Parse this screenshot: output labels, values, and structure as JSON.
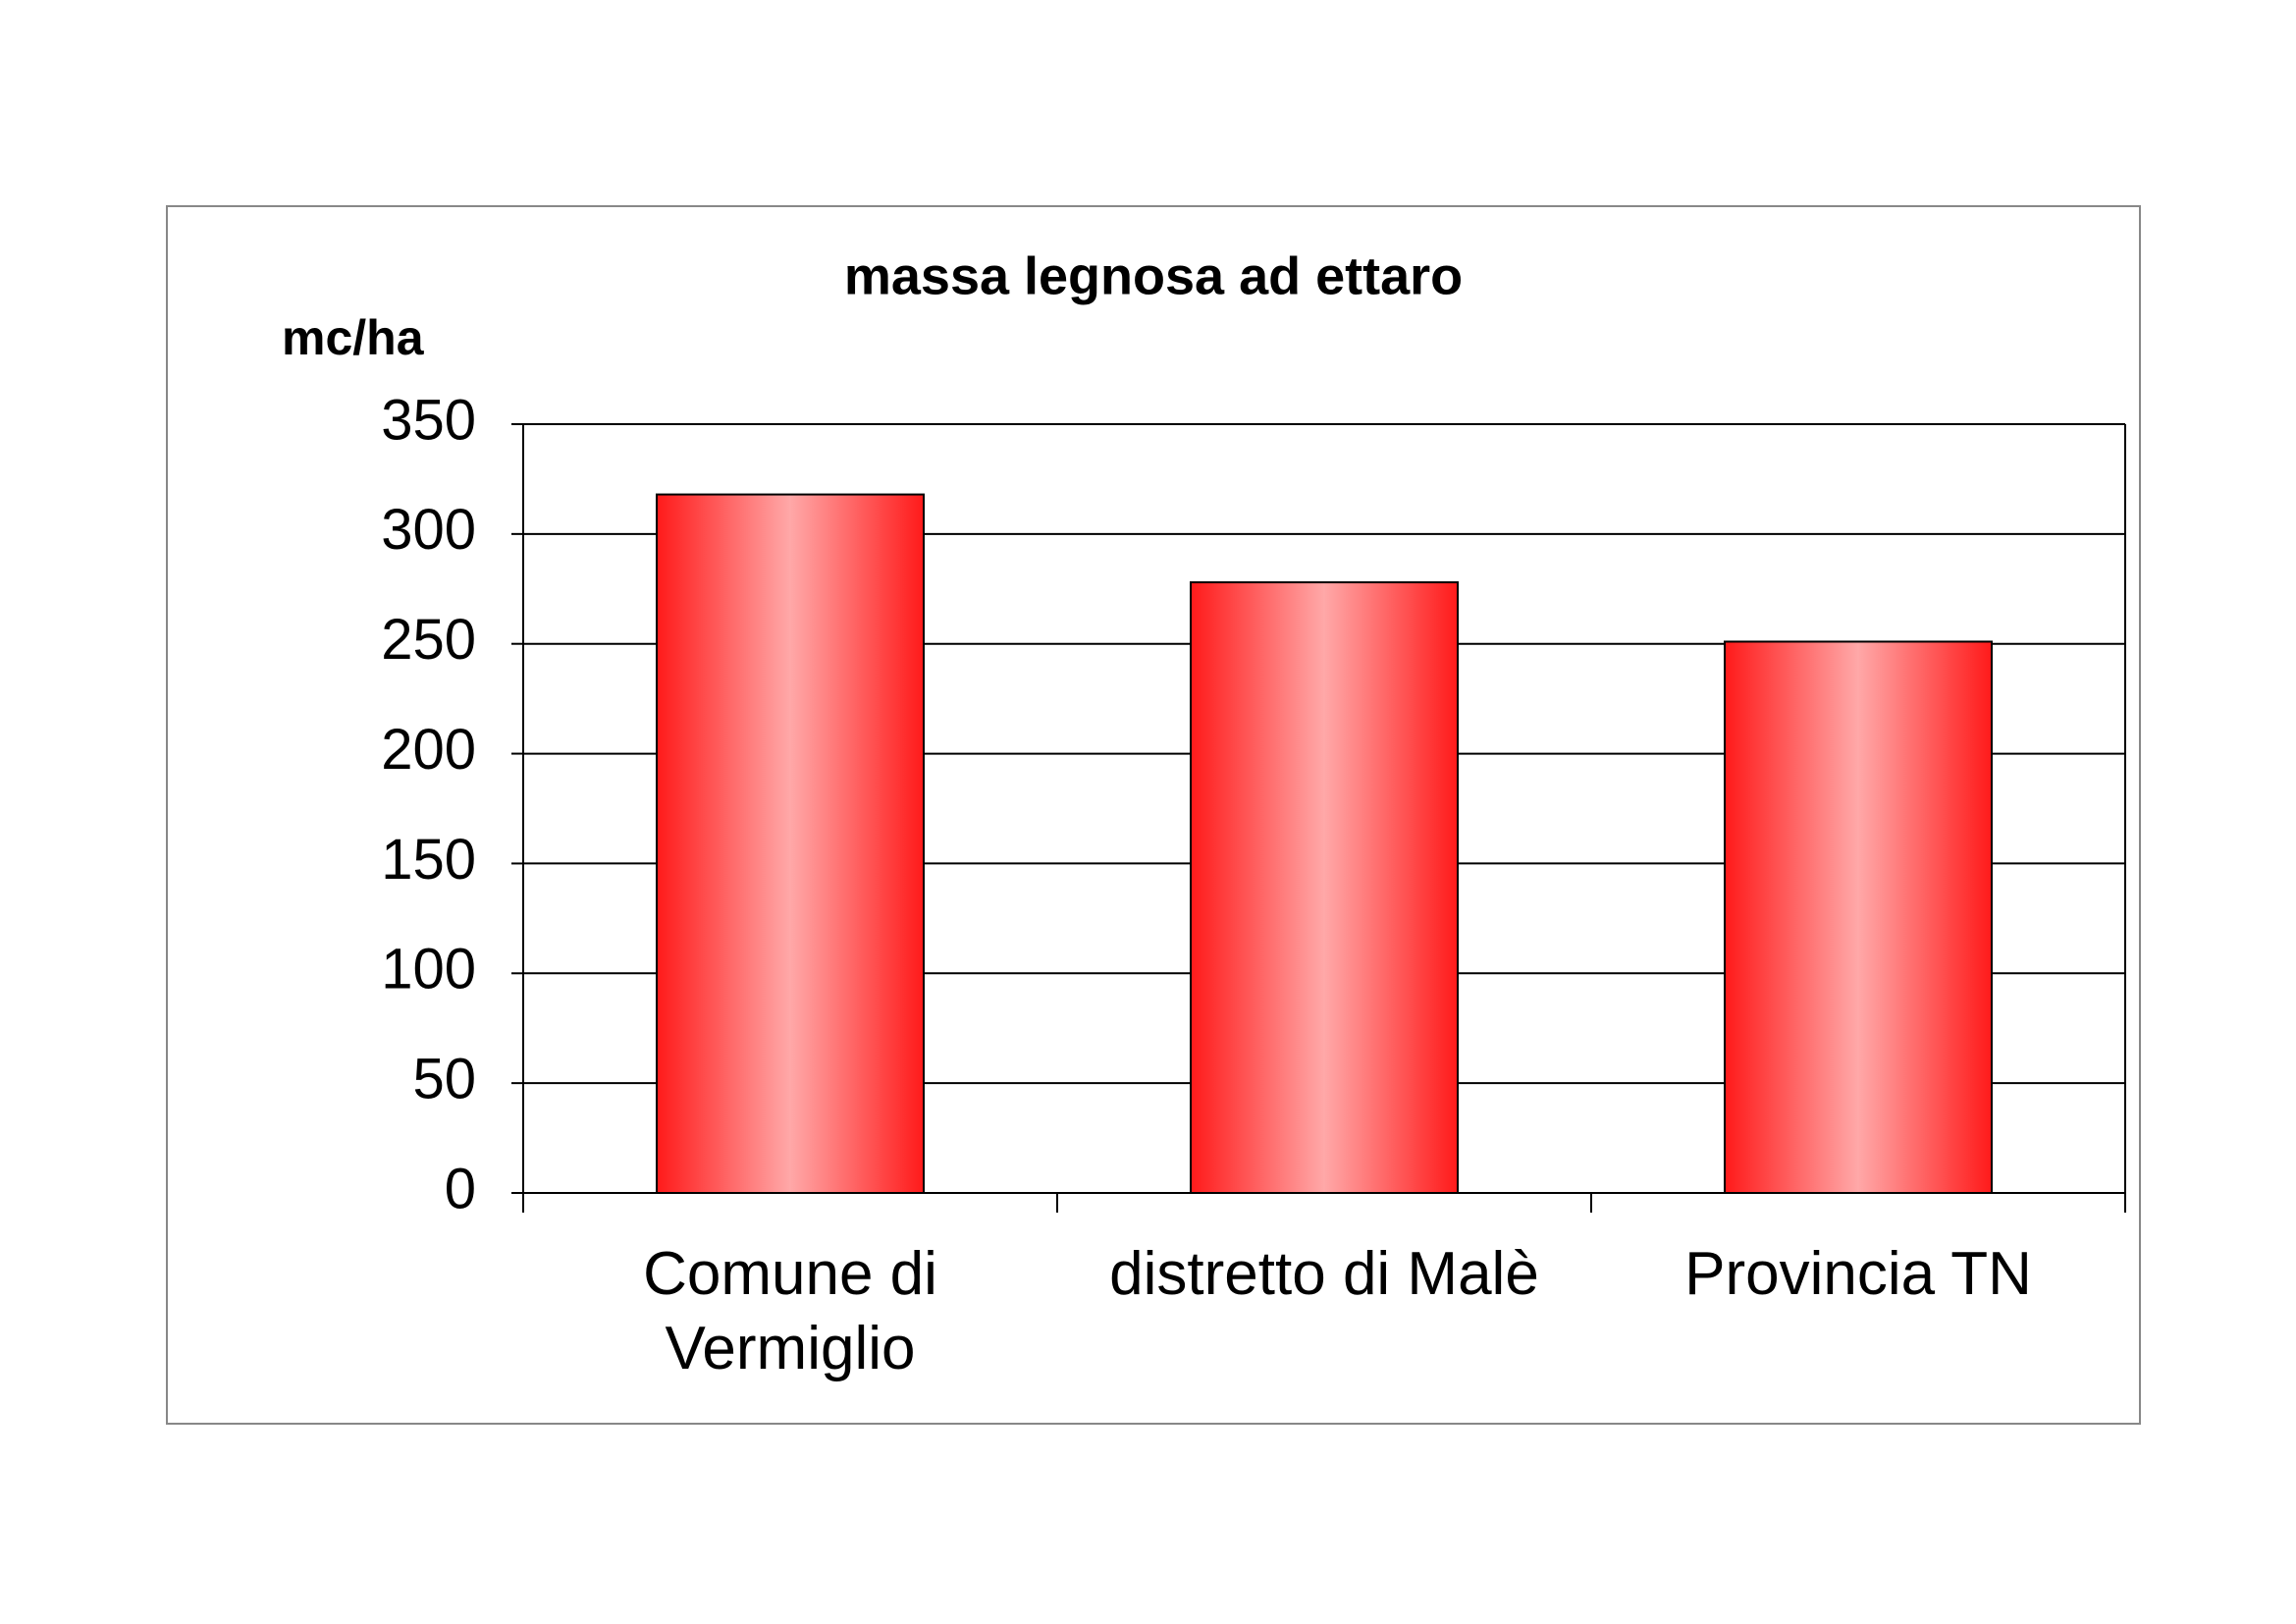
{
  "chart_data": {
    "type": "bar",
    "title": "massa legnosa ad ettaro",
    "y_label": "mc/ha",
    "categories": [
      "Comune di Vermiglio",
      "distretto di Malè",
      "Provincia TN"
    ],
    "values": [
      318,
      278,
      251
    ],
    "color": "#ff1a1a",
    "ylim": [
      0,
      350
    ],
    "yticks": [
      0,
      50,
      100,
      150,
      200,
      250,
      300,
      350
    ],
    "grid": true
  }
}
